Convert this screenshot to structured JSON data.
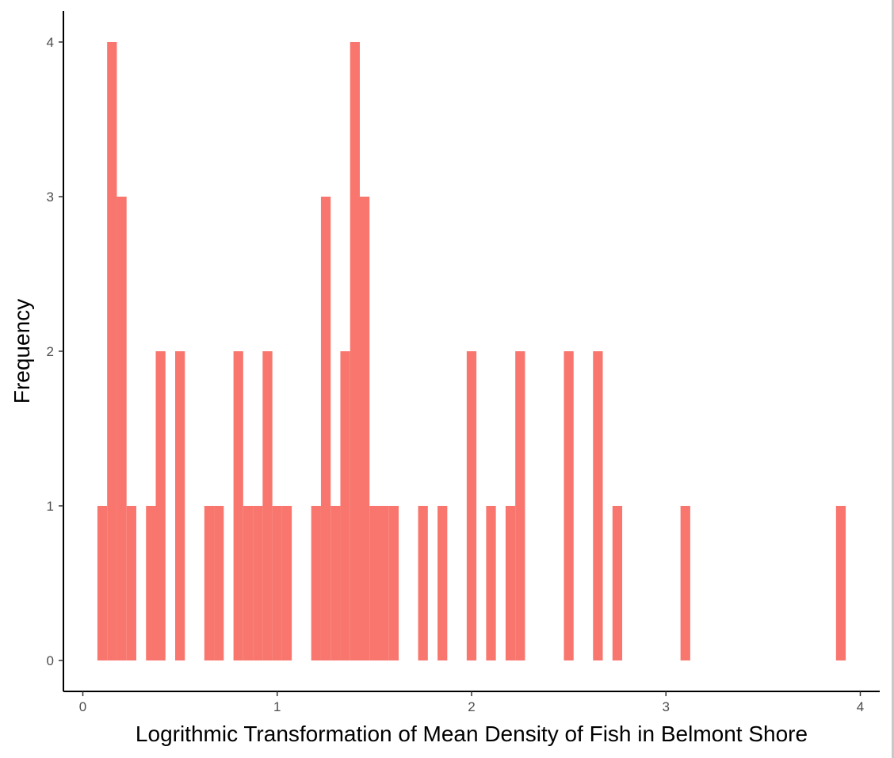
{
  "chart_data": {
    "type": "bar",
    "title": "",
    "xlabel": "Logrithmic Transformation of Mean Density of Fish in Belmont Shore",
    "ylabel": "Frequency",
    "xlim": [
      -0.1,
      4.1
    ],
    "ylim": [
      -0.2,
      4.2
    ],
    "x_ticks": [
      0,
      1,
      2,
      3,
      4
    ],
    "y_ticks": [
      0,
      1,
      2,
      3,
      4
    ],
    "bin_width": 0.05,
    "grid": false,
    "bar_color": "#F8766D",
    "bins": [
      {
        "x": 0.1,
        "count": 1
      },
      {
        "x": 0.15,
        "count": 4
      },
      {
        "x": 0.2,
        "count": 3
      },
      {
        "x": 0.25,
        "count": 1
      },
      {
        "x": 0.35,
        "count": 1
      },
      {
        "x": 0.4,
        "count": 2
      },
      {
        "x": 0.5,
        "count": 2
      },
      {
        "x": 0.65,
        "count": 1
      },
      {
        "x": 0.7,
        "count": 1
      },
      {
        "x": 0.8,
        "count": 2
      },
      {
        "x": 0.85,
        "count": 1
      },
      {
        "x": 0.9,
        "count": 1
      },
      {
        "x": 0.95,
        "count": 2
      },
      {
        "x": 1.0,
        "count": 1
      },
      {
        "x": 1.05,
        "count": 1
      },
      {
        "x": 1.2,
        "count": 1
      },
      {
        "x": 1.25,
        "count": 3
      },
      {
        "x": 1.3,
        "count": 1
      },
      {
        "x": 1.35,
        "count": 2
      },
      {
        "x": 1.4,
        "count": 4
      },
      {
        "x": 1.45,
        "count": 3
      },
      {
        "x": 1.5,
        "count": 1
      },
      {
        "x": 1.55,
        "count": 1
      },
      {
        "x": 1.6,
        "count": 1
      },
      {
        "x": 1.75,
        "count": 1
      },
      {
        "x": 1.85,
        "count": 1
      },
      {
        "x": 2.0,
        "count": 2
      },
      {
        "x": 2.1,
        "count": 1
      },
      {
        "x": 2.2,
        "count": 1
      },
      {
        "x": 2.25,
        "count": 2
      },
      {
        "x": 2.5,
        "count": 2
      },
      {
        "x": 2.65,
        "count": 2
      },
      {
        "x": 2.75,
        "count": 1
      },
      {
        "x": 3.1,
        "count": 1
      },
      {
        "x": 3.9,
        "count": 1
      }
    ]
  }
}
